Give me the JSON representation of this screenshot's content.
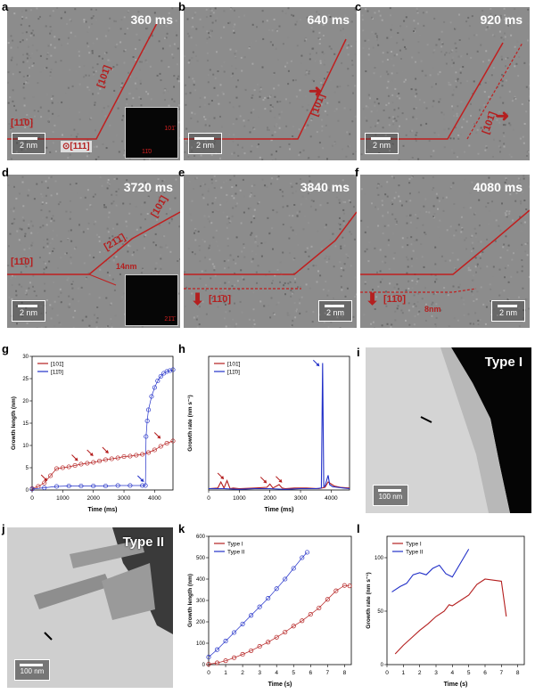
{
  "panels": {
    "a": {
      "label": "a",
      "time": "360 ms",
      "scale": "2 nm",
      "dir1": "[101̄]",
      "dir2": "[11̄0]",
      "zone": "⊙[111]",
      "fft1": "101̄",
      "fft2": "11̄0"
    },
    "b": {
      "label": "b",
      "time": "640 ms",
      "scale": "2 nm",
      "dir1": "[101̄]"
    },
    "c": {
      "label": "c",
      "time": "920 ms",
      "scale": "2 nm",
      "dir1": "[101̄]"
    },
    "d": {
      "label": "d",
      "time": "3720 ms",
      "scale": "2 nm",
      "dir1": "[101̄]",
      "dir2": "[11̄0]",
      "dir3": "[21̄1̄]",
      "meas": "14nm",
      "fft1": "21̄1̄"
    },
    "e": {
      "label": "e",
      "time": "3840 ms",
      "scale": "2 nm",
      "dir1": "[11̄0]"
    },
    "f": {
      "label": "f",
      "time": "4080 ms",
      "scale": "2 nm",
      "dir1": "[11̄0]",
      "meas": "8nm"
    },
    "i": {
      "label": "i",
      "title": "Type I",
      "scale": "100 nm"
    },
    "j": {
      "label": "j",
      "title": "Type II",
      "scale": "100 nm"
    }
  },
  "colors": {
    "red": "#b41f1f",
    "blue": "#2230c8"
  },
  "chart_data": [
    {
      "id": "g",
      "type": "scatter",
      "label": "g",
      "xlabel": "Time (ms)",
      "ylabel": "Growth length (nm)",
      "xlim": [
        0,
        4600
      ],
      "ylim": [
        0,
        30
      ],
      "xticks": [
        "0",
        "1000",
        "2000",
        "3000",
        "4000"
      ],
      "yticks": [
        "0",
        "5",
        "10",
        "15",
        "20",
        "25",
        "30"
      ],
      "series": [
        {
          "name": "[101̄]",
          "color": "#b41f1f",
          "x": [
            0,
            200,
            400,
            600,
            800,
            1000,
            1200,
            1400,
            1600,
            1800,
            2000,
            2200,
            2400,
            2600,
            2800,
            3000,
            3200,
            3400,
            3600,
            3800,
            4000,
            4200,
            4400,
            4600
          ],
          "y": [
            0.3,
            0.8,
            1.6,
            3.2,
            4.8,
            5.0,
            5.2,
            5.5,
            5.8,
            6.0,
            6.2,
            6.5,
            6.8,
            7.0,
            7.2,
            7.5,
            7.6,
            7.8,
            8.0,
            8.4,
            9.0,
            9.8,
            10.5,
            11.0
          ]
        },
        {
          "name": "[11̄0]",
          "color": "#2230c8",
          "x": [
            0,
            400,
            800,
            1200,
            1600,
            2000,
            2400,
            2800,
            3200,
            3600,
            3700,
            3720,
            3760,
            3800,
            3900,
            4000,
            4100,
            4200,
            4300,
            4400,
            4500,
            4600
          ],
          "y": [
            0.2,
            0.5,
            0.8,
            0.9,
            0.9,
            0.9,
            0.9,
            1.0,
            1.0,
            1.0,
            1.0,
            12.0,
            15.5,
            18.0,
            21.0,
            23.0,
            24.5,
            25.5,
            26.2,
            26.6,
            26.8,
            27.0
          ]
        }
      ]
    },
    {
      "id": "h",
      "type": "line",
      "label": "h",
      "xlabel": "Time (ms)",
      "ylabel": "Growth rate (nm s⁻¹)",
      "xlim": [
        0,
        4600
      ],
      "ylim": [
        0,
        200
      ],
      "xticks": [
        "0",
        "1000",
        "2000",
        "3000",
        "4000"
      ],
      "series": [
        {
          "name": "[101̄]",
          "color": "#b41f1f",
          "x": [
            0,
            300,
            400,
            500,
            600,
            700,
            800,
            1000,
            1500,
            1900,
            2000,
            2100,
            2300,
            2400,
            2500,
            2800,
            3200,
            3600,
            3800,
            3900,
            4100,
            4300,
            4600
          ],
          "y": [
            2,
            3,
            12,
            3,
            14,
            2,
            3,
            2,
            3,
            4,
            9,
            3,
            8,
            3,
            2,
            3,
            3,
            2,
            4,
            12,
            6,
            4,
            3
          ]
        },
        {
          "name": "[11̄0]",
          "color": "#2230c8",
          "x": [
            0,
            500,
            1000,
            1500,
            2000,
            2500,
            3000,
            3500,
            3680,
            3720,
            3760,
            3800,
            3900,
            3950,
            4050,
            4200,
            4400,
            4600
          ],
          "y": [
            2,
            2,
            1,
            2,
            2,
            1,
            2,
            2,
            3,
            190,
            5,
            6,
            22,
            8,
            5,
            4,
            3,
            2
          ]
        }
      ]
    },
    {
      "id": "k",
      "type": "scatter",
      "label": "k",
      "xlabel": "Time (s)",
      "ylabel": "Growth length (nm)",
      "xlim": [
        0,
        8.4
      ],
      "ylim": [
        0,
        600
      ],
      "xticks": [
        "0",
        "1",
        "2",
        "3",
        "4",
        "5",
        "6",
        "7",
        "8"
      ],
      "yticks": [
        "0",
        "100",
        "200",
        "300",
        "400",
        "500",
        "600"
      ],
      "series": [
        {
          "name": "Type I",
          "color": "#b41f1f",
          "x": [
            0,
            0.5,
            1,
            1.5,
            2,
            2.5,
            3,
            3.5,
            4,
            4.5,
            5,
            5.5,
            6,
            6.5,
            7,
            7.5,
            8,
            8.3
          ],
          "y": [
            2,
            8,
            18,
            32,
            48,
            65,
            85,
            105,
            128,
            152,
            180,
            205,
            235,
            265,
            305,
            345,
            370,
            368
          ]
        },
        {
          "name": "Type II",
          "color": "#2230c8",
          "x": [
            0,
            0.5,
            1,
            1.5,
            2,
            2.5,
            3,
            3.5,
            4,
            4.5,
            5,
            5.5,
            5.8
          ],
          "y": [
            35,
            70,
            110,
            150,
            190,
            230,
            270,
            310,
            355,
            400,
            450,
            500,
            525
          ]
        }
      ]
    },
    {
      "id": "l",
      "type": "line",
      "label": "l",
      "xlabel": "Time (s)",
      "ylabel": "Growth rate (nm s⁻¹)",
      "xlim": [
        0,
        8.4
      ],
      "ylim": [
        0,
        120
      ],
      "xticks": [
        "0",
        "1",
        "2",
        "3",
        "4",
        "5",
        "6",
        "7",
        "8"
      ],
      "yticks": [
        "0",
        "50",
        "100"
      ],
      "series": [
        {
          "name": "Type I",
          "color": "#b41f1f",
          "x": [
            0.5,
            1,
            1.5,
            2,
            2.5,
            3,
            3.5,
            3.8,
            4,
            4.5,
            5,
            5.5,
            6,
            6.5,
            7,
            7.3
          ],
          "y": [
            10,
            18,
            25,
            32,
            38,
            45,
            50,
            56,
            55,
            60,
            65,
            75,
            80,
            79,
            78,
            45
          ]
        },
        {
          "name": "Type II",
          "color": "#2230c8",
          "x": [
            0.3,
            0.8,
            1.2,
            1.6,
            2.0,
            2.4,
            2.8,
            3.2,
            3.6,
            4.0,
            4.5,
            5.0
          ],
          "y": [
            68,
            73,
            76,
            84,
            86,
            84,
            90,
            93,
            85,
            82,
            95,
            108
          ]
        }
      ]
    }
  ]
}
